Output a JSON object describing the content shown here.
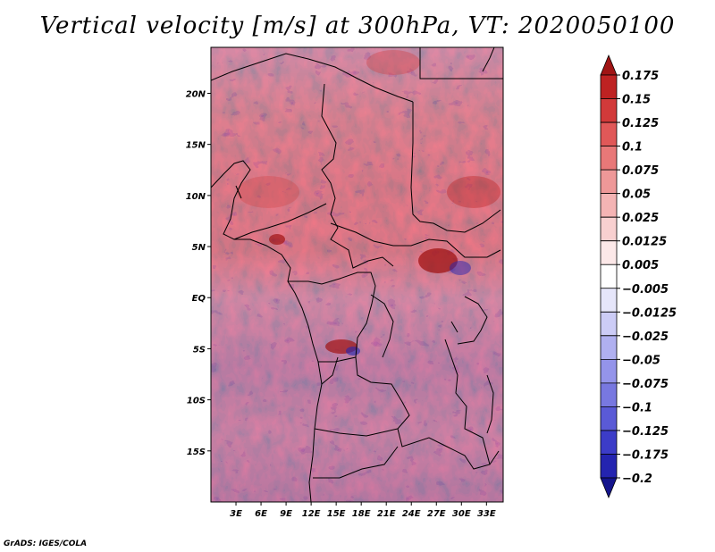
{
  "chart_data": {
    "type": "heatmap",
    "title": "Vertical velocity [m/s] at 300hPa, VT: 2020050100",
    "variable": "Vertical velocity",
    "units": "m/s",
    "level": "300hPa",
    "valid_time": "2020050100",
    "x": {
      "range": [
        0,
        35
      ],
      "ticks": [
        3,
        6,
        9,
        12,
        15,
        18,
        21,
        24,
        27,
        30,
        33
      ],
      "tick_labels": [
        "3E",
        "6E",
        "9E",
        "12E",
        "15E",
        "18E",
        "21E",
        "24E",
        "27E",
        "30E",
        "33E"
      ]
    },
    "y": {
      "range": [
        -20,
        24.5
      ],
      "ticks": [
        20,
        15,
        10,
        5,
        0,
        -5,
        -10,
        -15
      ],
      "tick_labels": [
        "20N",
        "15N",
        "10N",
        "5N",
        "EQ",
        "5S",
        "10S",
        "15S"
      ]
    },
    "colorbar": {
      "levels": [
        0.175,
        0.15,
        0.125,
        0.1,
        0.075,
        0.05,
        0.025,
        0.0125,
        0.005,
        -0.005,
        -0.0125,
        -0.025,
        -0.05,
        -0.075,
        -0.1,
        -0.125,
        -0.175,
        -0.2
      ],
      "labels": [
        "0.175",
        "0.15",
        "0.125",
        "0.1",
        "0.075",
        "0.05",
        "0.025",
        "0.0125",
        "0.005",
        "−0.005",
        "−0.0125",
        "−0.025",
        "−0.05",
        "−0.075",
        "−0.1",
        "−0.125",
        "−0.175",
        "−0.2"
      ],
      "colors": [
        "#a01414",
        "#be2222",
        "#d23a3a",
        "#e05858",
        "#e87878",
        "#ee9898",
        "#f4b4b4",
        "#f8d0d0",
        "#fce8e8",
        "#ffffff",
        "#e6e6fa",
        "#ccccf6",
        "#b0b0f0",
        "#9494ea",
        "#7878e0",
        "#5a5ad6",
        "#3c3cc8",
        "#2424b0",
        "#14148c"
      ]
    }
  },
  "credit": "GrADS: IGES/COLA"
}
